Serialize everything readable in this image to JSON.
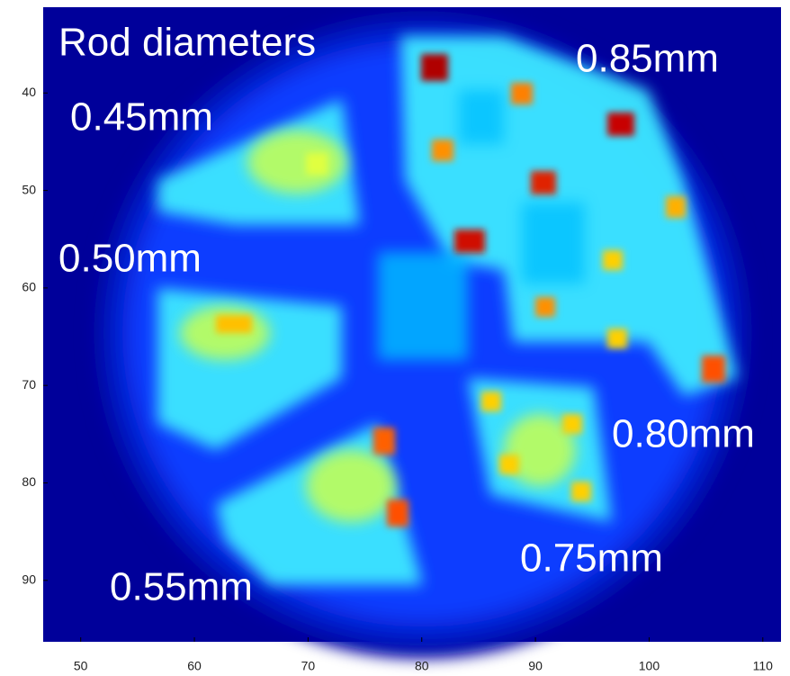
{
  "chart_data": {
    "type": "image",
    "annotations": [
      "Rod diameters",
      "0.85mm",
      "0.45mm",
      "0.50mm",
      "0.80mm",
      "0.75mm",
      "0.55mm"
    ],
    "xlim": [
      46.7,
      111.6
    ],
    "ylim": [
      31.2,
      96.3
    ],
    "y_reversed": true,
    "xticks": [
      50,
      60,
      70,
      80,
      90,
      100,
      110
    ],
    "yticks": [
      40,
      50,
      60,
      70,
      80,
      90
    ]
  }
}
